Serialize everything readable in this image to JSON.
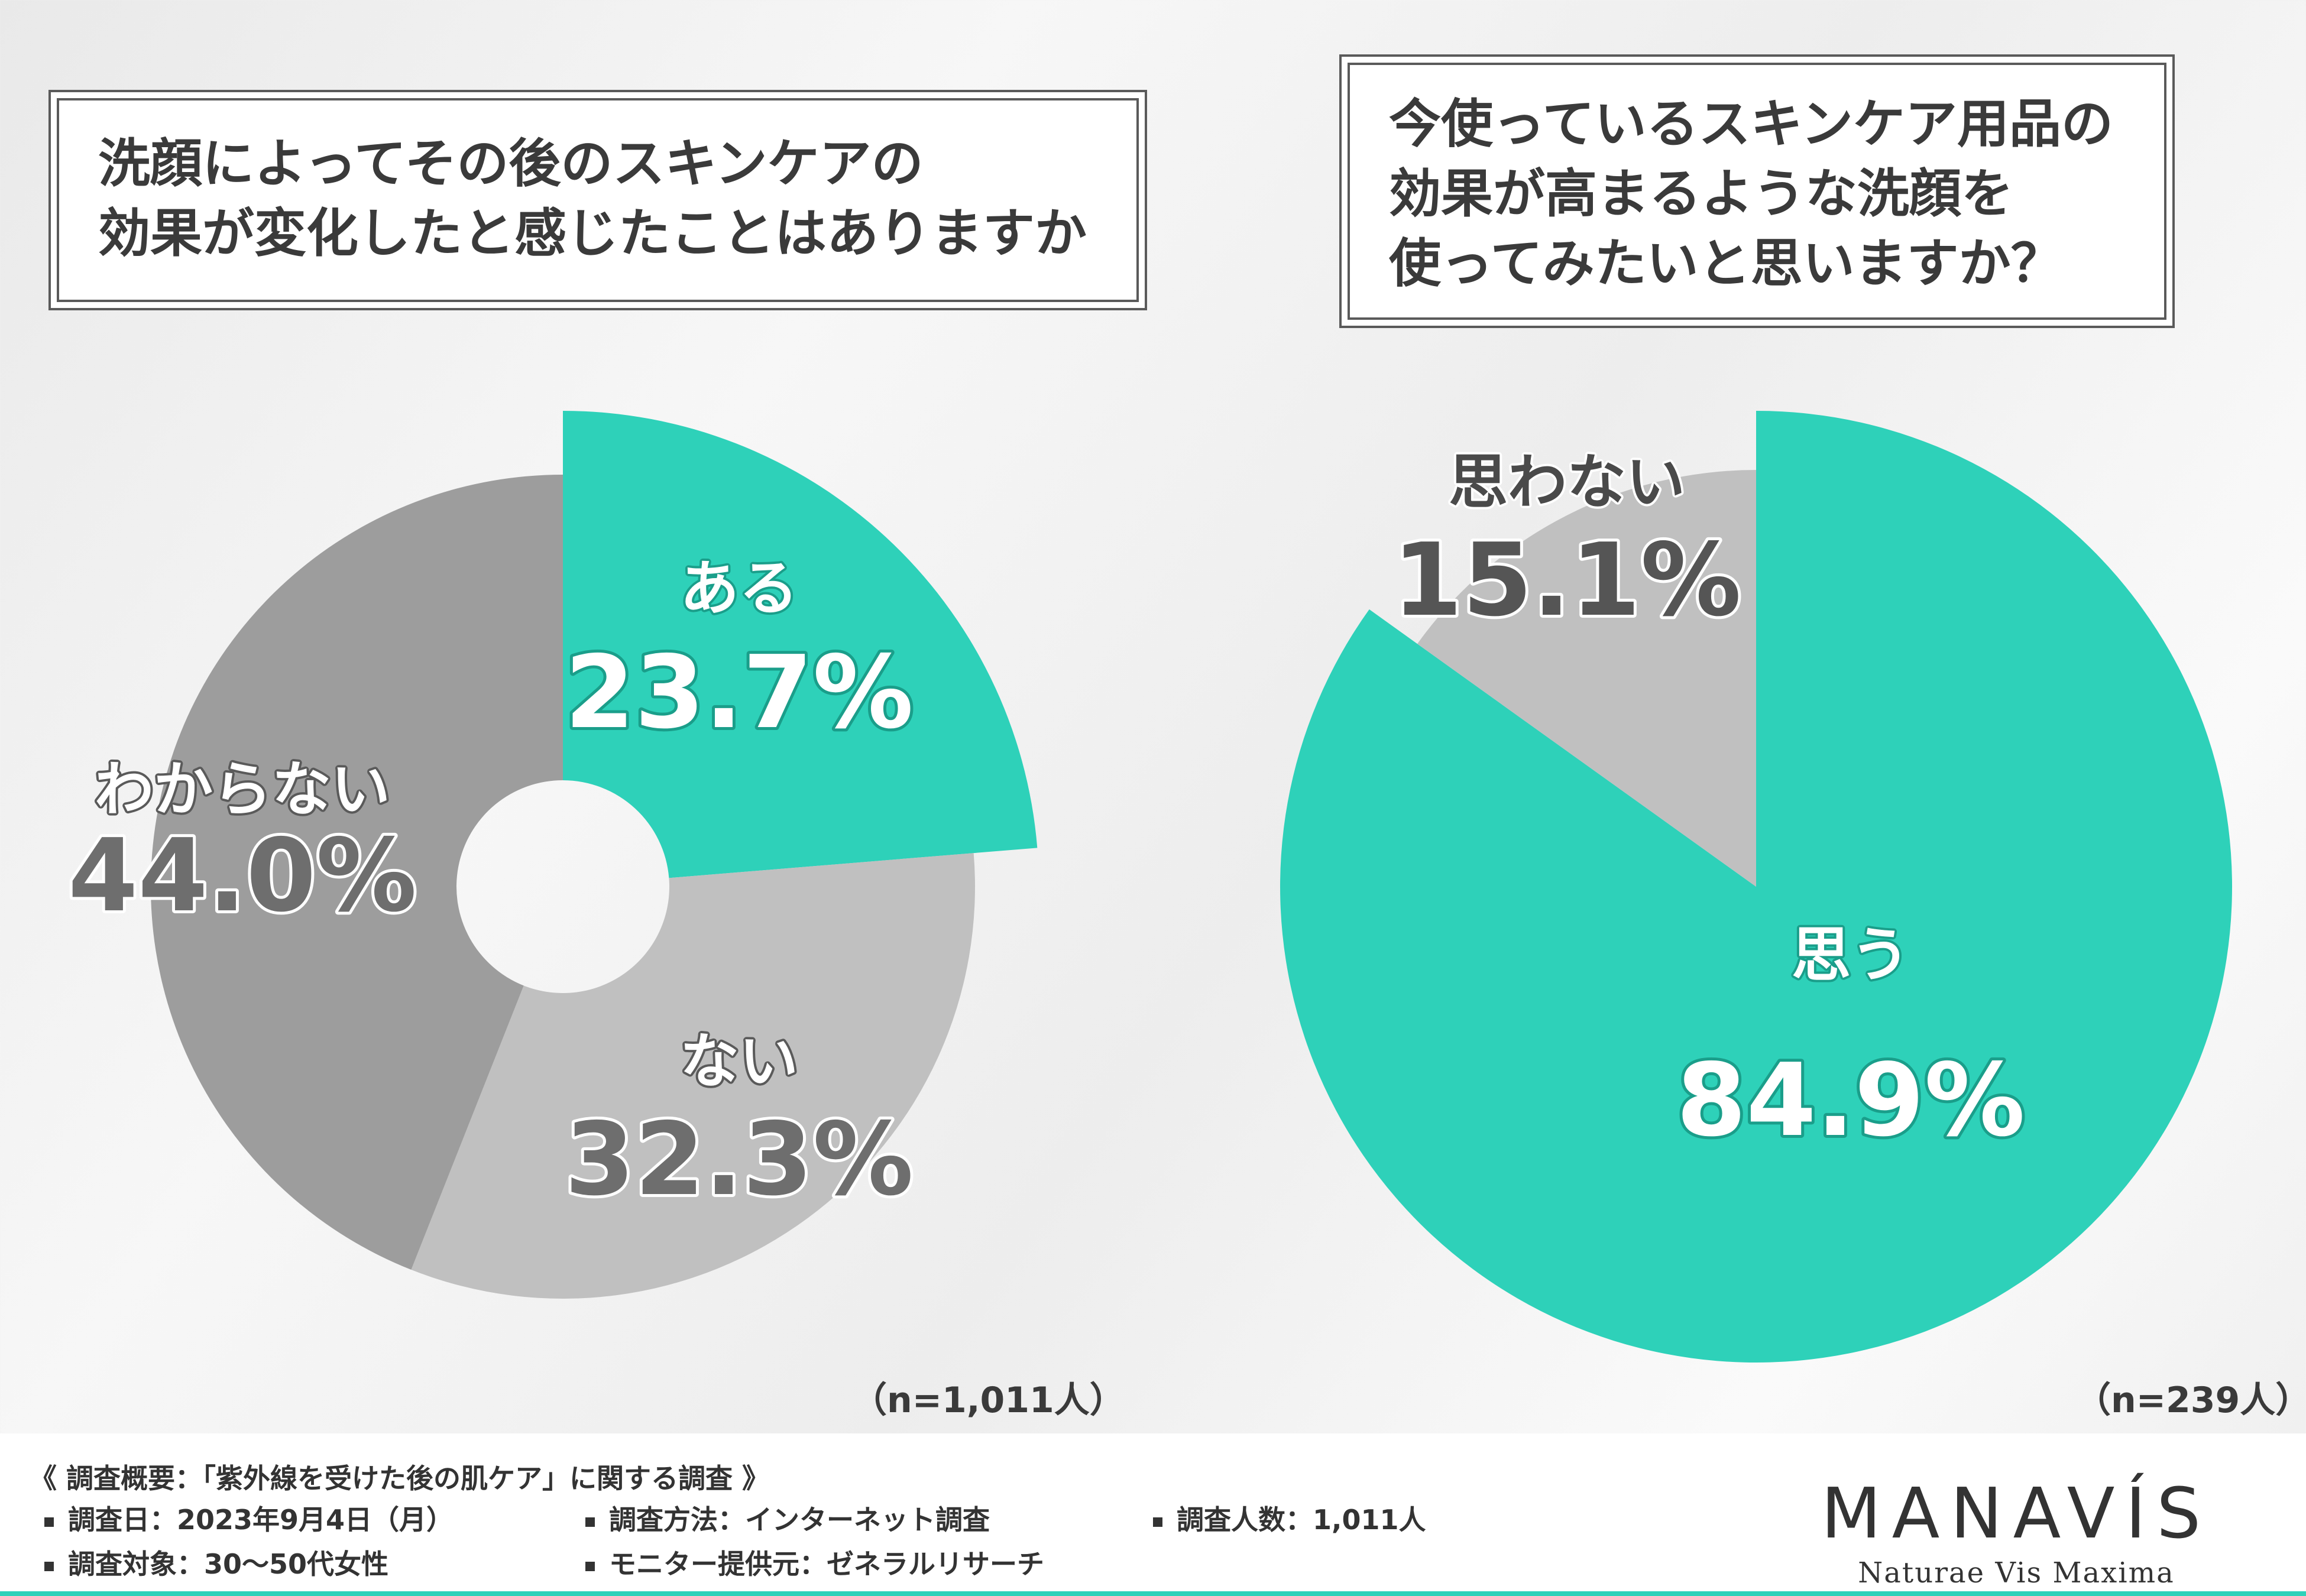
{
  "questions": {
    "q1": "洗顔によってその後のスキンケアの\n効果が変化したと感じたことはありますか",
    "q2": "今使っているスキンケア用品の\n効果が高まるような洗顔を\n使ってみたいと思いますか？"
  },
  "chart_data": [
    {
      "type": "pie",
      "title": "洗顔によってその後のスキンケアの効果が変化したと感じたことはありますか",
      "n_label": "（n=1,011人）",
      "slices": [
        {
          "label": "ある",
          "value": 23.7,
          "display": "23.7%",
          "color": "#2ed1b9"
        },
        {
          "label": "ない",
          "value": 32.3,
          "display": "32.3%",
          "color": "#c0c0c0"
        },
        {
          "label": "わからない",
          "value": 44.0,
          "display": "44.0%",
          "color": "#9d9d9d"
        }
      ]
    },
    {
      "type": "pie",
      "title": "今使っているスキンケア用品の効果が高まるような洗顔を使ってみたいと思いますか？",
      "n_label": "（n=239人）",
      "slices": [
        {
          "label": "思う",
          "value": 84.9,
          "display": "84.9%",
          "color": "#2ed1b9"
        },
        {
          "label": "思わない",
          "value": 15.1,
          "display": "15.1%",
          "color": "#c0c0c0"
        }
      ]
    }
  ],
  "footer": {
    "title": "《 調査概要：「紫外線を受けた後の肌ケア」に関する調査 》",
    "items": [
      "調査日：2023年9月4日（月）",
      "調査方法：インターネット調査",
      "調査人数：1,011人",
      "調査対象：30〜50代女性",
      "モニター提供元：ゼネラルリサーチ"
    ],
    "brand": "MANAVÍS",
    "brand_sub": "Naturae Vis Maxima"
  }
}
